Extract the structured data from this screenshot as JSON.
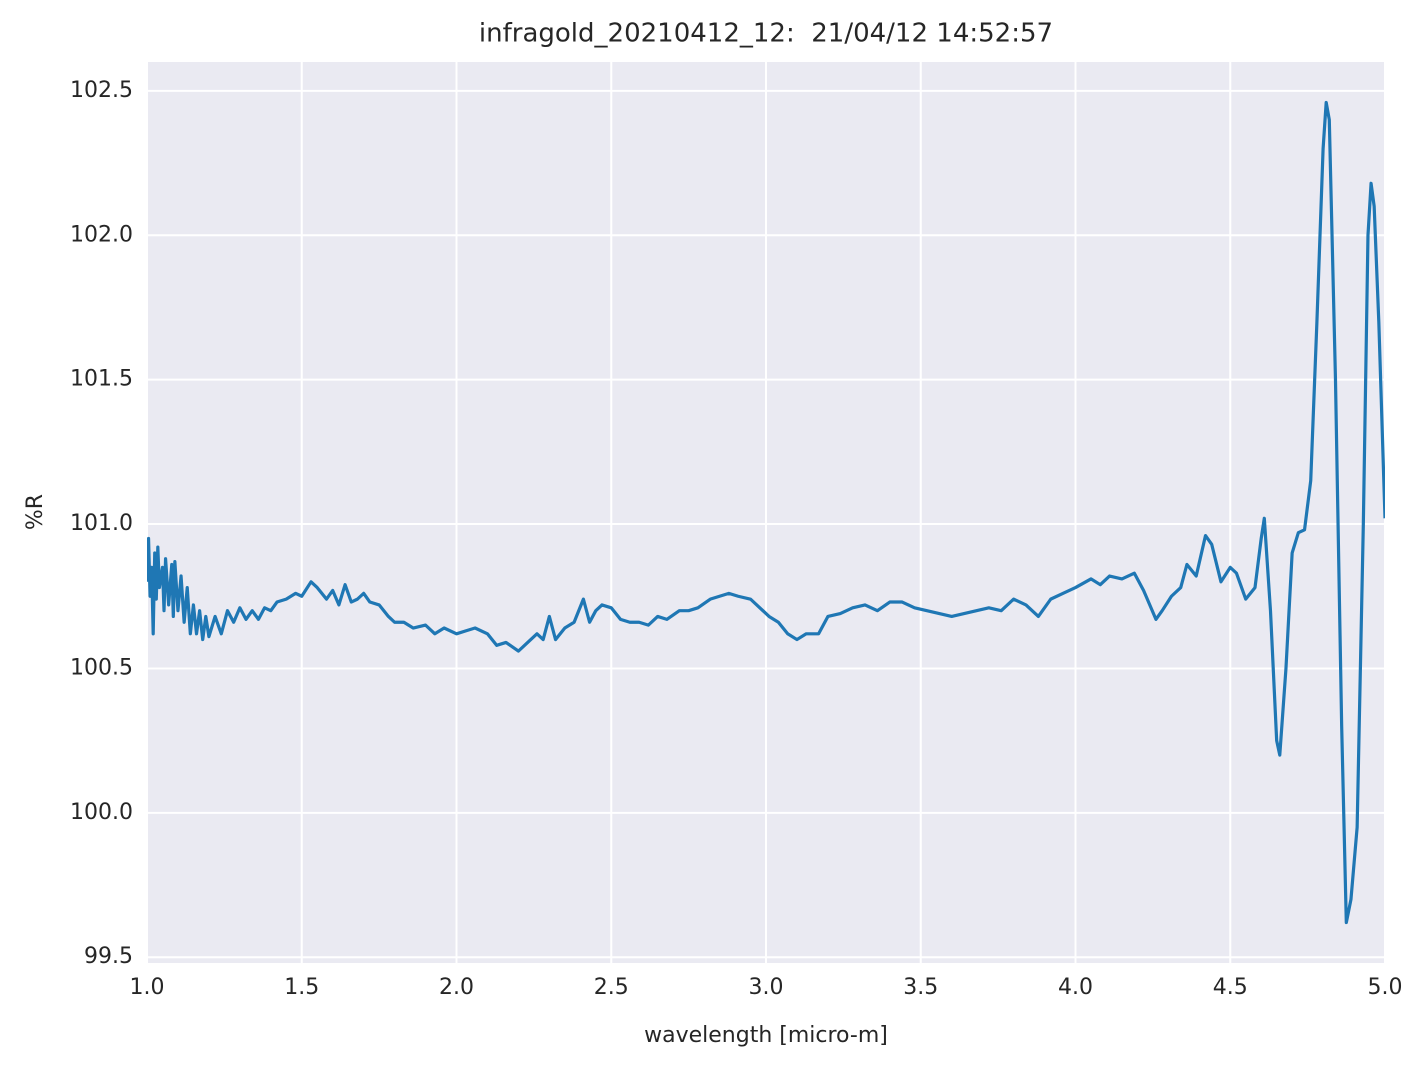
{
  "chart_data": {
    "type": "line",
    "title": "infragold_20210412_12:  21/04/12 14:52:57",
    "x_label": "wavelength [micro-m]",
    "y_label": "%R",
    "color": "#1f77b4",
    "grid": true,
    "xlim": [
      1.0,
      5.0
    ],
    "ylim": [
      99.48,
      102.6
    ],
    "xticks": [
      {
        "value": 1,
        "label": "1.0"
      },
      1.5,
      {
        "value": 2,
        "label": "2.0"
      },
      2.5,
      {
        "value": 3,
        "label": "3.0"
      },
      3.5,
      {
        "value": 4,
        "label": "4.0"
      },
      4.5,
      {
        "value": 5,
        "label": "5.0"
      }
    ],
    "yticks": [
      99.5,
      {
        "value": 100,
        "label": "100.0"
      },
      100.5,
      {
        "value": 101,
        "label": "101.0"
      },
      101.5,
      {
        "value": 102,
        "label": "102.0"
      },
      102.5
    ],
    "x": [
      1.0,
      1.005,
      1.01,
      1.015,
      1.02,
      1.025,
      1.03,
      1.035,
      1.04,
      1.05,
      1.055,
      1.06,
      1.07,
      1.08,
      1.085,
      1.09,
      1.1,
      1.11,
      1.12,
      1.13,
      1.14,
      1.15,
      1.16,
      1.17,
      1.18,
      1.19,
      1.2,
      1.22,
      1.24,
      1.26,
      1.28,
      1.3,
      1.32,
      1.34,
      1.36,
      1.38,
      1.4,
      1.42,
      1.45,
      1.48,
      1.5,
      1.53,
      1.55,
      1.58,
      1.6,
      1.62,
      1.64,
      1.66,
      1.68,
      1.7,
      1.72,
      1.75,
      1.78,
      1.8,
      1.83,
      1.86,
      1.9,
      1.93,
      1.96,
      2.0,
      2.03,
      2.06,
      2.1,
      2.13,
      2.16,
      2.2,
      2.23,
      2.26,
      2.28,
      2.3,
      2.32,
      2.35,
      2.38,
      2.41,
      2.43,
      2.45,
      2.47,
      2.5,
      2.53,
      2.56,
      2.59,
      2.62,
      2.65,
      2.68,
      2.72,
      2.75,
      2.78,
      2.82,
      2.85,
      2.88,
      2.91,
      2.95,
      2.98,
      3.01,
      3.04,
      3.07,
      3.1,
      3.13,
      3.17,
      3.2,
      3.24,
      3.28,
      3.32,
      3.36,
      3.4,
      3.44,
      3.48,
      3.52,
      3.56,
      3.6,
      3.64,
      3.68,
      3.72,
      3.76,
      3.8,
      3.84,
      3.88,
      3.92,
      3.96,
      4.0,
      4.05,
      4.08,
      4.11,
      4.15,
      4.19,
      4.22,
      4.26,
      4.28,
      4.31,
      4.34,
      4.36,
      4.39,
      4.42,
      4.44,
      4.47,
      4.5,
      4.52,
      4.55,
      4.58,
      4.6,
      4.61,
      4.63,
      4.65,
      4.66,
      4.68,
      4.7,
      4.72,
      4.74,
      4.76,
      4.78,
      4.8,
      4.81,
      4.82,
      4.84,
      4.86,
      4.875,
      4.89,
      4.91,
      4.93,
      4.945,
      4.955,
      4.965,
      4.98,
      5.0
    ],
    "values": [
      100.8,
      100.95,
      100.75,
      100.85,
      100.62,
      100.9,
      100.74,
      100.92,
      100.78,
      100.85,
      100.7,
      100.88,
      100.72,
      100.86,
      100.68,
      100.87,
      100.7,
      100.82,
      100.66,
      100.78,
      100.62,
      100.72,
      100.62,
      100.7,
      100.6,
      100.68,
      100.61,
      100.68,
      100.62,
      100.7,
      100.66,
      100.71,
      100.67,
      100.7,
      100.67,
      100.71,
      100.7,
      100.73,
      100.74,
      100.76,
      100.75,
      100.8,
      100.78,
      100.74,
      100.77,
      100.72,
      100.79,
      100.73,
      100.74,
      100.76,
      100.73,
      100.72,
      100.68,
      100.66,
      100.66,
      100.64,
      100.65,
      100.62,
      100.64,
      100.62,
      100.63,
      100.64,
      100.62,
      100.58,
      100.59,
      100.56,
      100.59,
      100.62,
      100.6,
      100.68,
      100.6,
      100.64,
      100.66,
      100.74,
      100.66,
      100.7,
      100.72,
      100.71,
      100.67,
      100.66,
      100.66,
      100.65,
      100.68,
      100.67,
      100.7,
      100.7,
      100.71,
      100.74,
      100.75,
      100.76,
      100.75,
      100.74,
      100.71,
      100.68,
      100.66,
      100.62,
      100.6,
      100.62,
      100.62,
      100.68,
      100.69,
      100.71,
      100.72,
      100.7,
      100.73,
      100.73,
      100.71,
      100.7,
      100.69,
      100.68,
      100.69,
      100.7,
      100.71,
      100.7,
      100.74,
      100.72,
      100.68,
      100.74,
      100.76,
      100.78,
      100.81,
      100.79,
      100.82,
      100.81,
      100.83,
      100.77,
      100.67,
      100.7,
      100.75,
      100.78,
      100.86,
      100.82,
      100.96,
      100.93,
      100.8,
      100.85,
      100.83,
      100.74,
      100.78,
      100.95,
      101.02,
      100.7,
      100.25,
      100.2,
      100.5,
      100.9,
      100.97,
      100.98,
      101.15,
      101.7,
      102.3,
      102.46,
      102.4,
      101.5,
      100.3,
      99.62,
      99.7,
      99.95,
      101.0,
      102.0,
      102.18,
      102.1,
      101.7,
      101.02
    ]
  }
}
